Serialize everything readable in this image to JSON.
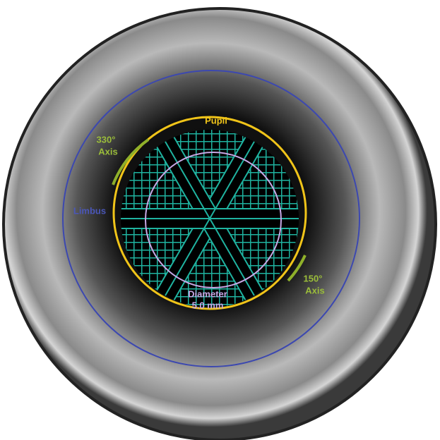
{
  "labels": {
    "pupil": "Pupil",
    "axis330": {
      "angle": "330°",
      "label": "Axis"
    },
    "limbus": "Limbus",
    "axis150": {
      "angle": "150°",
      "label": "Axis"
    },
    "diameter": {
      "label": "Diameter",
      "value": "5.0 mm"
    }
  }
}
